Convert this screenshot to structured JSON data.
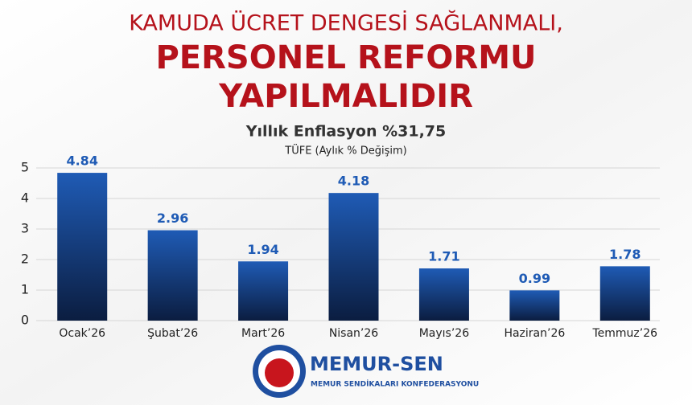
{
  "chart_data": {
    "type": "bar",
    "title": "KAMUDA ÜCRET DENGESİ SAĞLANMALI,",
    "headline": [
      "PERSONEL REFORMU",
      "YAPILMALIDIR"
    ],
    "subtitle": "Yıllık Enflasyon %31,75",
    "axis_label": "TÜFE (Aylık % Değişim)",
    "categories": [
      "Ocak’26",
      "Şubat’26",
      "Mart’26",
      "Nisan’26",
      "Mayıs’26",
      "Haziran’26",
      "Temmuz’26"
    ],
    "values": [
      4.84,
      2.96,
      1.94,
      4.18,
      1.71,
      0.99,
      1.78
    ],
    "color": "#1f5bb5",
    "ylim": [
      0,
      5
    ],
    "yticks": [
      0,
      1,
      2,
      3,
      4,
      5
    ],
    "grid": true
  },
  "logo": {
    "name": "MEMUR-SEN",
    "tagline": "MEMUR SENDİKALARI KONFEDERASYONU"
  }
}
